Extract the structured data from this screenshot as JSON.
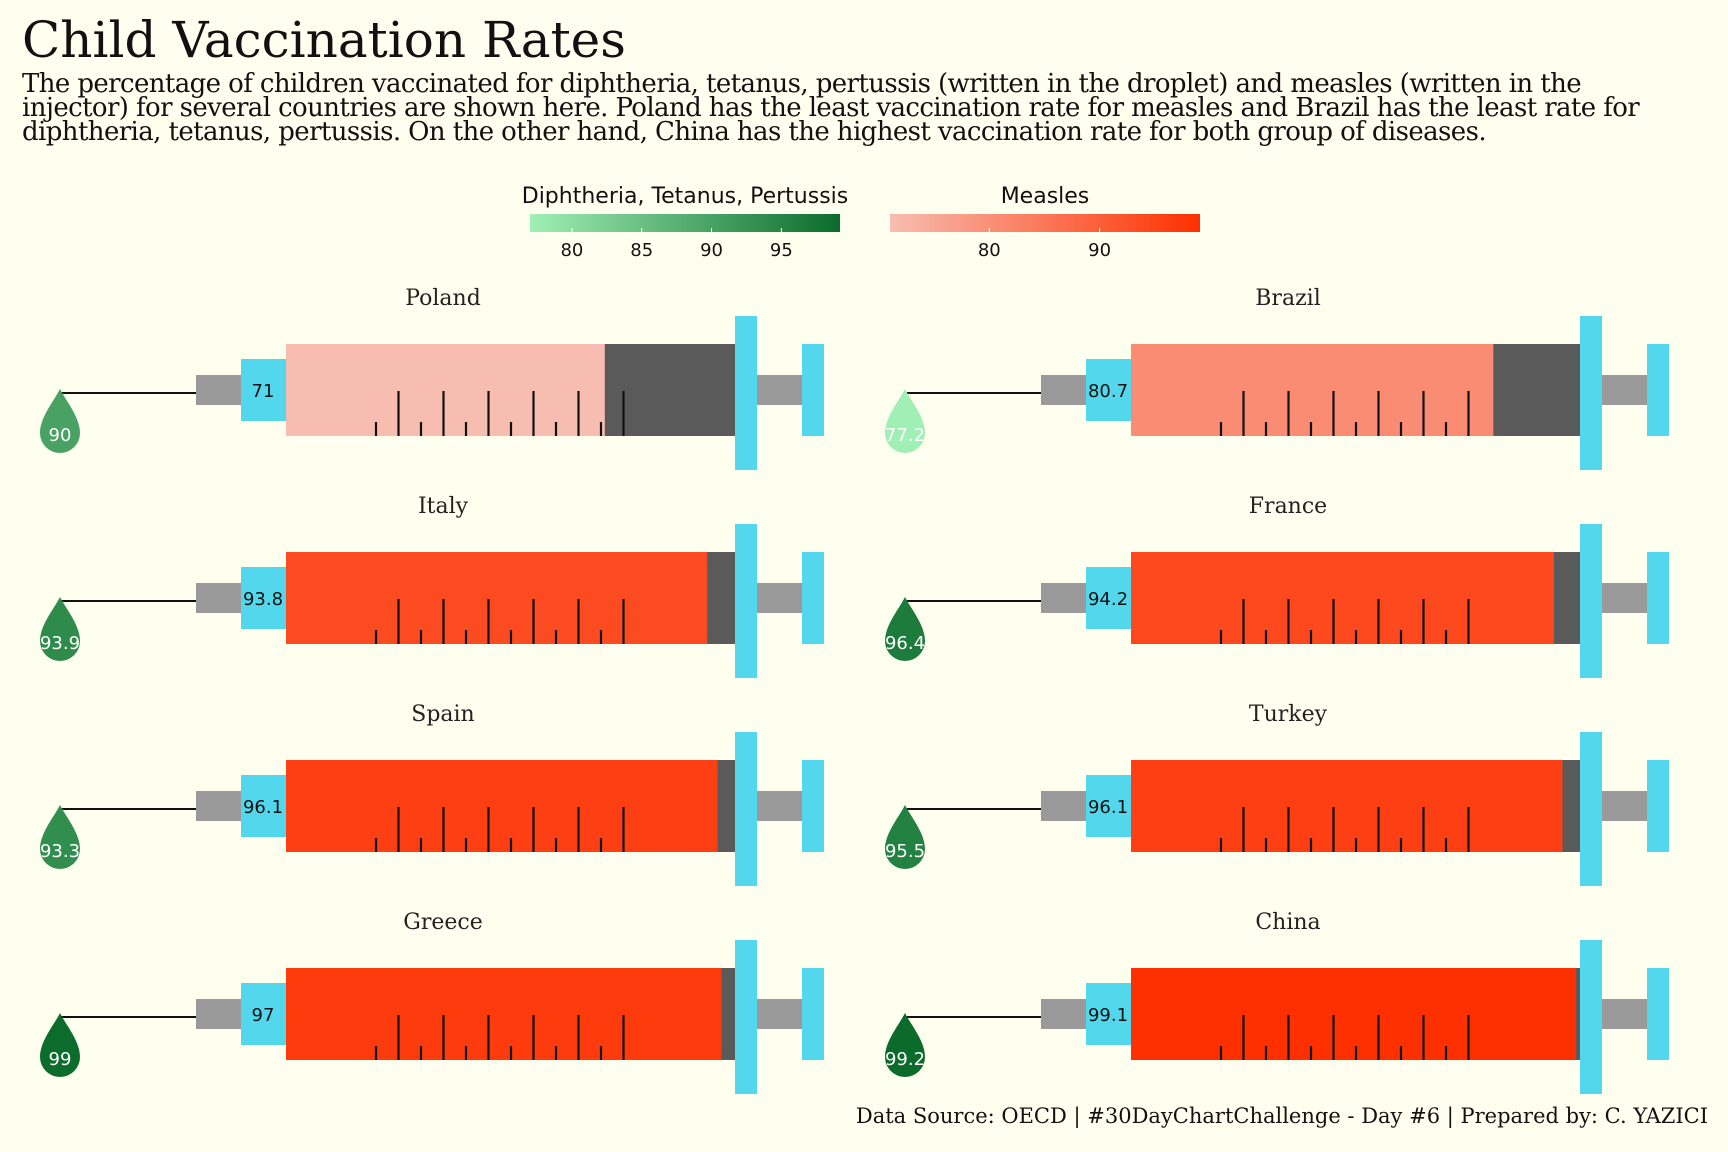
{
  "title": "Child Vaccination Rates",
  "subtitle": "The percentage of children vaccinated for diphtheria, tetanus, pertussis (written in the droplet) and measles (written in the injector) for several countries are shown here. Poland has the least vaccination rate for measles and Brazil has the least rate for diphtheria, tetanus, pertussis. On the other hand, China has the highest vaccination rate for both group of diseases.",
  "caption": "Data Source: OECD | #30DayChartChallenge - Day #6 | Prepared by: C. YAZICI",
  "colors": {
    "background": "#fffff0",
    "dtp_low": "#a1f0b5",
    "dtp_high": "#0a6b2a",
    "measles_low": "#f7bdb0",
    "measles_high": "#ff3000",
    "injector": "#52d7ec",
    "barrel_empty": "#5a5a5a",
    "needle_hub": "#9a9a9a"
  },
  "chart_data": {
    "type": "pictogram",
    "legend": {
      "dtp": {
        "title": "Diphtheria, Tetanus, Pertussis",
        "range": [
          77,
          99.2
        ],
        "ticks": [
          80,
          85,
          90,
          95
        ]
      },
      "measles": {
        "title": "Measles",
        "range": [
          71,
          99.1
        ],
        "ticks": [
          80,
          90
        ]
      }
    },
    "series": [
      {
        "name": "Diphtheria, Tetanus, Pertussis",
        "shown_as": "droplet"
      },
      {
        "name": "Measles",
        "shown_as": "injector"
      }
    ],
    "countries": [
      {
        "name": "Poland",
        "measles": 71,
        "dtp": 90,
        "measles_label": "71",
        "dtp_label": "90"
      },
      {
        "name": "Brazil",
        "measles": 80.7,
        "dtp": 77.2,
        "measles_label": "80.7",
        "dtp_label": "77.2"
      },
      {
        "name": "Italy",
        "measles": 93.8,
        "dtp": 93.9,
        "measles_label": "93.8",
        "dtp_label": "93.9"
      },
      {
        "name": "France",
        "measles": 94.2,
        "dtp": 96.4,
        "measles_label": "94.2",
        "dtp_label": "96.4"
      },
      {
        "name": "Spain",
        "measles": 96.1,
        "dtp": 93.3,
        "measles_label": "96.1",
        "dtp_label": "93.3"
      },
      {
        "name": "Turkey",
        "measles": 96.1,
        "dtp": 95.5,
        "measles_label": "96.1",
        "dtp_label": "95.5"
      },
      {
        "name": "Greece",
        "measles": 97,
        "dtp": 99,
        "measles_label": "97",
        "dtp_label": "99"
      },
      {
        "name": "China",
        "measles": 99.1,
        "dtp": 99.2,
        "measles_label": "99.1",
        "dtp_label": "99.2"
      }
    ]
  }
}
